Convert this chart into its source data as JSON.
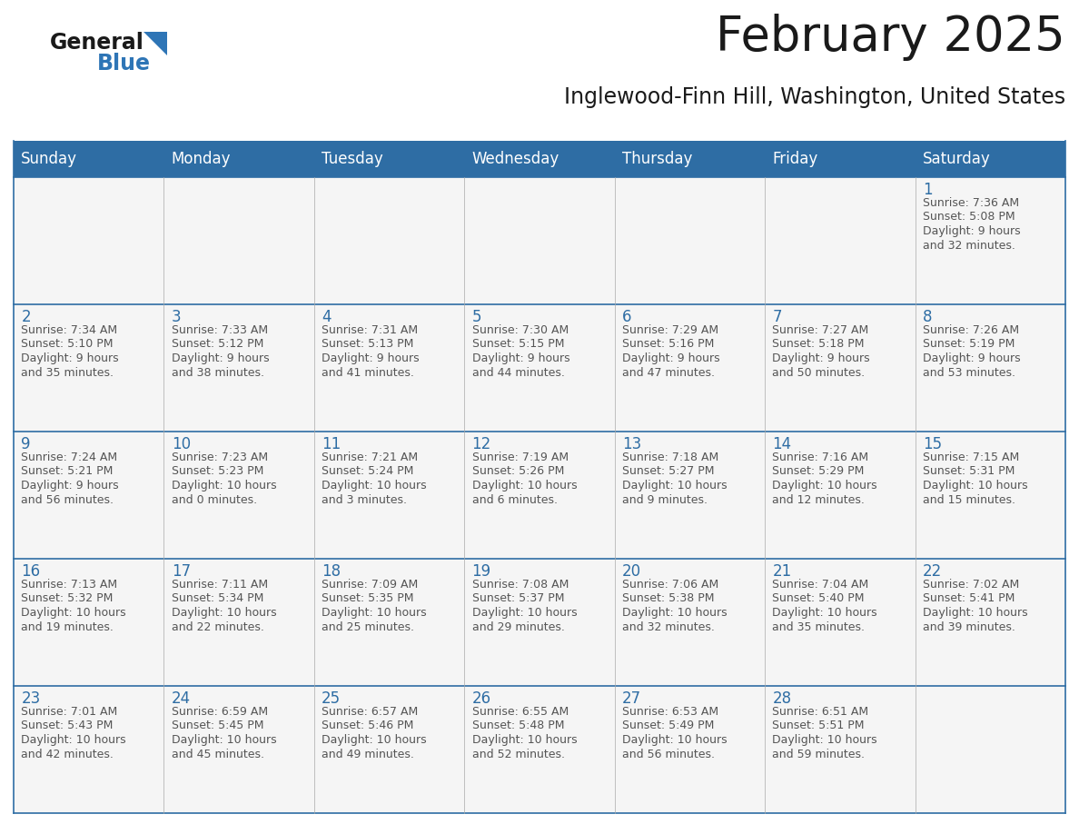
{
  "title": "February 2025",
  "subtitle": "Inglewood-Finn Hill, Washington, United States",
  "header_bg": "#2E6DA4",
  "header_text_color": "#FFFFFF",
  "cell_bg": "#F5F5F5",
  "cell_border_color": "#2E6DA4",
  "day_number_color": "#2E6DA4",
  "info_text_color": "#555555",
  "days_of_week": [
    "Sunday",
    "Monday",
    "Tuesday",
    "Wednesday",
    "Thursday",
    "Friday",
    "Saturday"
  ],
  "weeks": [
    [
      {
        "day": "",
        "info": ""
      },
      {
        "day": "",
        "info": ""
      },
      {
        "day": "",
        "info": ""
      },
      {
        "day": "",
        "info": ""
      },
      {
        "day": "",
        "info": ""
      },
      {
        "day": "",
        "info": ""
      },
      {
        "day": "1",
        "info": "Sunrise: 7:36 AM\nSunset: 5:08 PM\nDaylight: 9 hours\nand 32 minutes."
      }
    ],
    [
      {
        "day": "2",
        "info": "Sunrise: 7:34 AM\nSunset: 5:10 PM\nDaylight: 9 hours\nand 35 minutes."
      },
      {
        "day": "3",
        "info": "Sunrise: 7:33 AM\nSunset: 5:12 PM\nDaylight: 9 hours\nand 38 minutes."
      },
      {
        "day": "4",
        "info": "Sunrise: 7:31 AM\nSunset: 5:13 PM\nDaylight: 9 hours\nand 41 minutes."
      },
      {
        "day": "5",
        "info": "Sunrise: 7:30 AM\nSunset: 5:15 PM\nDaylight: 9 hours\nand 44 minutes."
      },
      {
        "day": "6",
        "info": "Sunrise: 7:29 AM\nSunset: 5:16 PM\nDaylight: 9 hours\nand 47 minutes."
      },
      {
        "day": "7",
        "info": "Sunrise: 7:27 AM\nSunset: 5:18 PM\nDaylight: 9 hours\nand 50 minutes."
      },
      {
        "day": "8",
        "info": "Sunrise: 7:26 AM\nSunset: 5:19 PM\nDaylight: 9 hours\nand 53 minutes."
      }
    ],
    [
      {
        "day": "9",
        "info": "Sunrise: 7:24 AM\nSunset: 5:21 PM\nDaylight: 9 hours\nand 56 minutes."
      },
      {
        "day": "10",
        "info": "Sunrise: 7:23 AM\nSunset: 5:23 PM\nDaylight: 10 hours\nand 0 minutes."
      },
      {
        "day": "11",
        "info": "Sunrise: 7:21 AM\nSunset: 5:24 PM\nDaylight: 10 hours\nand 3 minutes."
      },
      {
        "day": "12",
        "info": "Sunrise: 7:19 AM\nSunset: 5:26 PM\nDaylight: 10 hours\nand 6 minutes."
      },
      {
        "day": "13",
        "info": "Sunrise: 7:18 AM\nSunset: 5:27 PM\nDaylight: 10 hours\nand 9 minutes."
      },
      {
        "day": "14",
        "info": "Sunrise: 7:16 AM\nSunset: 5:29 PM\nDaylight: 10 hours\nand 12 minutes."
      },
      {
        "day": "15",
        "info": "Sunrise: 7:15 AM\nSunset: 5:31 PM\nDaylight: 10 hours\nand 15 minutes."
      }
    ],
    [
      {
        "day": "16",
        "info": "Sunrise: 7:13 AM\nSunset: 5:32 PM\nDaylight: 10 hours\nand 19 minutes."
      },
      {
        "day": "17",
        "info": "Sunrise: 7:11 AM\nSunset: 5:34 PM\nDaylight: 10 hours\nand 22 minutes."
      },
      {
        "day": "18",
        "info": "Sunrise: 7:09 AM\nSunset: 5:35 PM\nDaylight: 10 hours\nand 25 minutes."
      },
      {
        "day": "19",
        "info": "Sunrise: 7:08 AM\nSunset: 5:37 PM\nDaylight: 10 hours\nand 29 minutes."
      },
      {
        "day": "20",
        "info": "Sunrise: 7:06 AM\nSunset: 5:38 PM\nDaylight: 10 hours\nand 32 minutes."
      },
      {
        "day": "21",
        "info": "Sunrise: 7:04 AM\nSunset: 5:40 PM\nDaylight: 10 hours\nand 35 minutes."
      },
      {
        "day": "22",
        "info": "Sunrise: 7:02 AM\nSunset: 5:41 PM\nDaylight: 10 hours\nand 39 minutes."
      }
    ],
    [
      {
        "day": "23",
        "info": "Sunrise: 7:01 AM\nSunset: 5:43 PM\nDaylight: 10 hours\nand 42 minutes."
      },
      {
        "day": "24",
        "info": "Sunrise: 6:59 AM\nSunset: 5:45 PM\nDaylight: 10 hours\nand 45 minutes."
      },
      {
        "day": "25",
        "info": "Sunrise: 6:57 AM\nSunset: 5:46 PM\nDaylight: 10 hours\nand 49 minutes."
      },
      {
        "day": "26",
        "info": "Sunrise: 6:55 AM\nSunset: 5:48 PM\nDaylight: 10 hours\nand 52 minutes."
      },
      {
        "day": "27",
        "info": "Sunrise: 6:53 AM\nSunset: 5:49 PM\nDaylight: 10 hours\nand 56 minutes."
      },
      {
        "day": "28",
        "info": "Sunrise: 6:51 AM\nSunset: 5:51 PM\nDaylight: 10 hours\nand 59 minutes."
      },
      {
        "day": "",
        "info": ""
      }
    ]
  ],
  "title_fontsize": 38,
  "subtitle_fontsize": 17,
  "header_fontsize": 12,
  "day_number_fontsize": 12,
  "info_fontsize": 9
}
